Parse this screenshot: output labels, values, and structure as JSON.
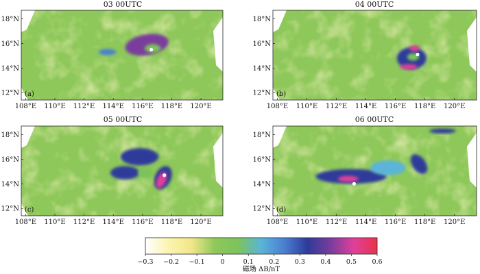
{
  "panels": [
    {
      "id": "a",
      "title": "03 00UTC",
      "label": "(a)",
      "marker": {
        "lon": 116.6,
        "lat": 15.5
      },
      "features": [
        {
          "lon": 116.3,
          "lat": 15.9,
          "rx": 1.5,
          "ry": 0.85,
          "value": 0.45,
          "rotate": -10
        },
        {
          "lon": 116.7,
          "lat": 15.6,
          "rx": 0.55,
          "ry": 0.35,
          "value": 0.05,
          "rotate": 0
        },
        {
          "lon": 113.6,
          "lat": 15.3,
          "rx": 0.6,
          "ry": 0.25,
          "value": 0.2,
          "rotate": 0
        }
      ]
    },
    {
      "id": "b",
      "title": "04 00UTC",
      "label": "(b)",
      "marker": {
        "lon": 117.5,
        "lat": 15.1
      },
      "features": [
        {
          "lon": 117.1,
          "lat": 14.8,
          "rx": 1.0,
          "ry": 0.9,
          "value": 0.32,
          "rotate": 0
        },
        {
          "lon": 117.3,
          "lat": 15.6,
          "rx": 0.35,
          "ry": 0.25,
          "value": 0.5,
          "rotate": 0
        },
        {
          "lon": 116.9,
          "lat": 14.1,
          "rx": 0.6,
          "ry": 0.22,
          "value": 0.5,
          "rotate": 0
        },
        {
          "lon": 117.2,
          "lat": 14.9,
          "rx": 0.4,
          "ry": 0.3,
          "value": 0.05,
          "rotate": 0
        }
      ]
    },
    {
      "id": "c",
      "title": "05 00UTC",
      "label": "(c)",
      "marker": {
        "lon": 117.5,
        "lat": 14.7
      },
      "features": [
        {
          "lon": 115.8,
          "lat": 16.2,
          "rx": 1.3,
          "ry": 0.7,
          "value": 0.32,
          "rotate": 0
        },
        {
          "lon": 114.8,
          "lat": 14.9,
          "rx": 1.0,
          "ry": 0.55,
          "value": 0.32,
          "rotate": 0
        },
        {
          "lon": 117.4,
          "lat": 14.5,
          "rx": 0.55,
          "ry": 1.0,
          "value": 0.34,
          "rotate": 25
        },
        {
          "lon": 117.3,
          "lat": 14.3,
          "rx": 0.3,
          "ry": 0.7,
          "value": 0.5,
          "rotate": 25
        },
        {
          "lon": 116.2,
          "lat": 14.9,
          "rx": 0.5,
          "ry": 0.45,
          "value": 0.05,
          "rotate": 0
        }
      ]
    },
    {
      "id": "d",
      "title": "06 00UTC",
      "label": "(d)",
      "marker": {
        "lon": 113.2,
        "lat": 14.0
      },
      "features": [
        {
          "lon": 113.0,
          "lat": 14.6,
          "rx": 2.4,
          "ry": 0.6,
          "value": 0.32,
          "rotate": 0
        },
        {
          "lon": 112.8,
          "lat": 14.4,
          "rx": 0.7,
          "ry": 0.25,
          "value": 0.5,
          "rotate": 0
        },
        {
          "lon": 117.6,
          "lat": 15.6,
          "rx": 0.45,
          "ry": 0.9,
          "value": 0.32,
          "rotate": -35
        },
        {
          "lon": 115.5,
          "lat": 15.3,
          "rx": 1.2,
          "ry": 0.6,
          "value": 0.18,
          "rotate": 0
        },
        {
          "lon": 119.2,
          "lat": 18.3,
          "rx": 0.9,
          "ry": 0.2,
          "value": 0.32,
          "rotate": 0
        }
      ]
    }
  ],
  "axes": {
    "x_ticks": [
      108,
      110,
      112,
      114,
      116,
      118,
      120
    ],
    "x_tick_labels": [
      "108°E",
      "110°E",
      "112°E",
      "114°E",
      "116°E",
      "118°E",
      "120°E"
    ],
    "xlim": [
      107.7,
      121.5
    ],
    "y_ticks": [
      12,
      14,
      16,
      18
    ],
    "y_tick_labels": [
      "12°N",
      "14°N",
      "16°N",
      "18°N"
    ],
    "ylim": [
      11.4,
      18.7
    ]
  },
  "colorbar": {
    "label": "磁场 ΔB/nT",
    "range": [
      -0.3,
      0.6
    ],
    "ticks": [
      -0.3,
      -0.2,
      -0.1,
      0,
      0.1,
      0.2,
      0.3,
      0.4,
      0.5,
      0.6
    ],
    "tick_labels": [
      "−0.3",
      "−0.2",
      "−0.1",
      "0",
      "0.1",
      "0.2",
      "0.3",
      "0.4",
      "0.5",
      "0.6"
    ],
    "colors": [
      "#ffffff",
      "#fbf4b0",
      "#f2e68a",
      "#8ec85a",
      "#7cc35c",
      "#5bb4d8",
      "#4a7fd0",
      "#2f3a9a",
      "#7a3d9c",
      "#e0409a",
      "#e8344a"
    ]
  }
}
